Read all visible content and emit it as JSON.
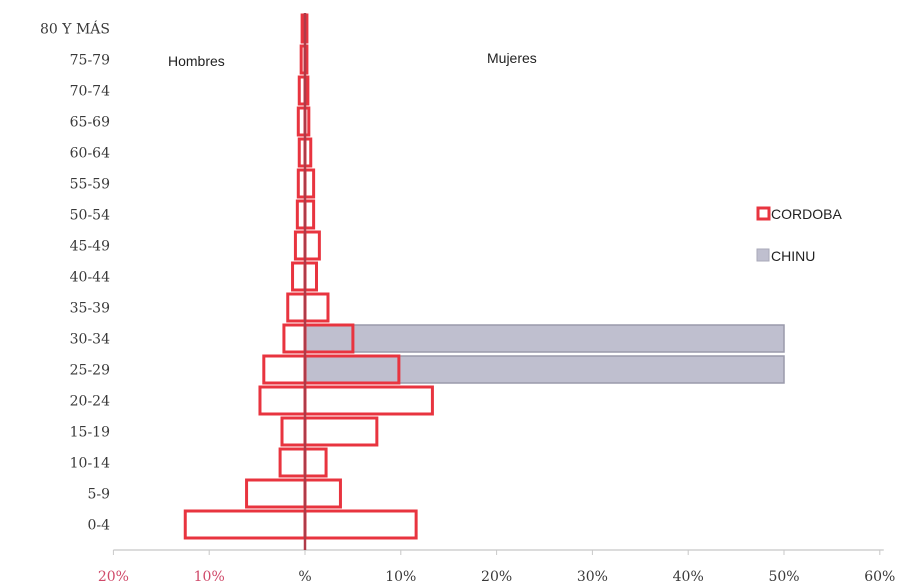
{
  "chart_data": {
    "type": "bar",
    "orientation": "horizontal",
    "subtype": "population-pyramid",
    "categories": [
      "80 Y MÁS",
      "75-79",
      "70-74",
      "65-69",
      "60-64",
      "55-59",
      "50-54",
      "45-49",
      "40-44",
      "35-39",
      "30-34",
      "25-29",
      "20-24",
      "15-19",
      "10-14",
      "5-9",
      "0-4"
    ],
    "side_labels": {
      "left": "Hombres",
      "right": "Mujeres"
    },
    "x_ticks": [
      "20%",
      "10%",
      "%",
      "10%",
      "20%",
      "30%",
      "40%",
      "50%",
      "60%"
    ],
    "x_tick_values": [
      -20,
      -10,
      0,
      10,
      20,
      30,
      40,
      50,
      60
    ],
    "xlim": [
      -20,
      60
    ],
    "series": [
      {
        "name": "CORDOBA",
        "color": "#e8343f",
        "style": "outline",
        "hombres": [
          -0.3,
          -0.4,
          -0.6,
          -0.7,
          -0.6,
          -0.7,
          -0.8,
          -1.0,
          -1.3,
          -1.8,
          -2.2,
          -4.3,
          -4.7,
          -2.4,
          -2.6,
          -6.1,
          -12.5
        ],
        "mujeres": [
          0.2,
          0.2,
          0.3,
          0.4,
          0.6,
          0.9,
          0.9,
          1.5,
          1.2,
          2.4,
          5.0,
          9.8,
          13.3,
          7.5,
          2.2,
          3.7,
          11.6
        ]
      },
      {
        "name": "CHINU",
        "color": "#bfbfcf",
        "style": "filled",
        "hombres": [
          0,
          0,
          0,
          0,
          0,
          0,
          0,
          0,
          0,
          0,
          0,
          0,
          0,
          0,
          0,
          0,
          0
        ],
        "mujeres": [
          0,
          0,
          0,
          0,
          0,
          0,
          0,
          0,
          0,
          0,
          50,
          50,
          0,
          0,
          0,
          0,
          0
        ]
      }
    ],
    "legend": {
      "placement": "right"
    },
    "grid": false
  }
}
